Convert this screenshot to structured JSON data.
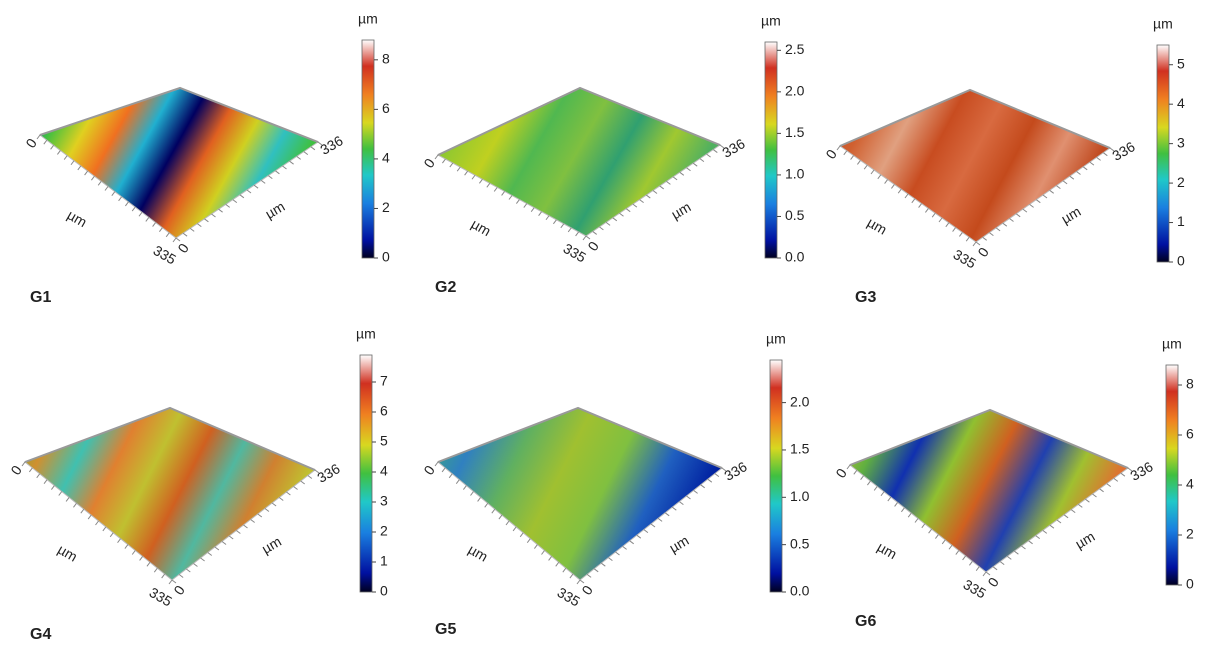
{
  "panels": [
    {
      "label": "G1",
      "unit": "µm",
      "range": [
        0,
        8.8
      ],
      "ticks": [
        0,
        2,
        4,
        6,
        8
      ],
      "axis": {
        "x_start": "0",
        "x_unit": "µm",
        "x_end": "335",
        "y_start": "0",
        "y_unit": "µm",
        "y_end": "336"
      }
    },
    {
      "label": "G2",
      "unit": "µm",
      "range": [
        0,
        2.6
      ],
      "ticks": [
        {
          "value": 0,
          "label": "0.0"
        },
        0.5,
        {
          "value": 1,
          "label": "1.0"
        },
        1.5,
        {
          "value": 2,
          "label": "2.0"
        },
        2.5
      ],
      "axis": {
        "x_start": "0",
        "x_unit": "µm",
        "x_end": "335",
        "y_start": "0",
        "y_unit": "µm",
        "y_end": "336"
      }
    },
    {
      "label": "G3",
      "unit": "µm",
      "range": [
        0,
        5.5
      ],
      "ticks": [
        0,
        1,
        2,
        3,
        4,
        5
      ],
      "axis": {
        "x_start": "0",
        "x_unit": "µm",
        "x_end": "335",
        "y_start": "0",
        "y_unit": "µm",
        "y_end": "336"
      }
    },
    {
      "label": "G4",
      "unit": "µm",
      "range": [
        0,
        7.9
      ],
      "ticks": [
        0,
        1,
        2,
        3,
        4,
        5,
        6,
        7
      ],
      "axis": {
        "x_start": "0",
        "x_unit": "µm",
        "x_end": "335",
        "y_start": "0",
        "y_unit": "µm",
        "y_end": "336"
      }
    },
    {
      "label": "G5",
      "unit": "µm",
      "range": [
        0,
        2.45
      ],
      "ticks": [
        {
          "value": 0,
          "label": "0.0"
        },
        0.5,
        {
          "value": 1,
          "label": "1.0"
        },
        1.5,
        {
          "value": 2,
          "label": "2.0"
        }
      ],
      "axis": {
        "x_start": "0",
        "x_unit": "µm",
        "x_end": "335",
        "y_start": "0",
        "y_unit": "µm",
        "y_end": "336"
      }
    },
    {
      "label": "G6",
      "unit": "µm",
      "range": [
        0,
        8.8
      ],
      "ticks": [
        0,
        2,
        4,
        6,
        8
      ],
      "axis": {
        "x_start": "0",
        "x_unit": "µm",
        "x_end": "335",
        "y_start": "0",
        "y_unit": "µm",
        "y_end": "336"
      }
    }
  ]
}
